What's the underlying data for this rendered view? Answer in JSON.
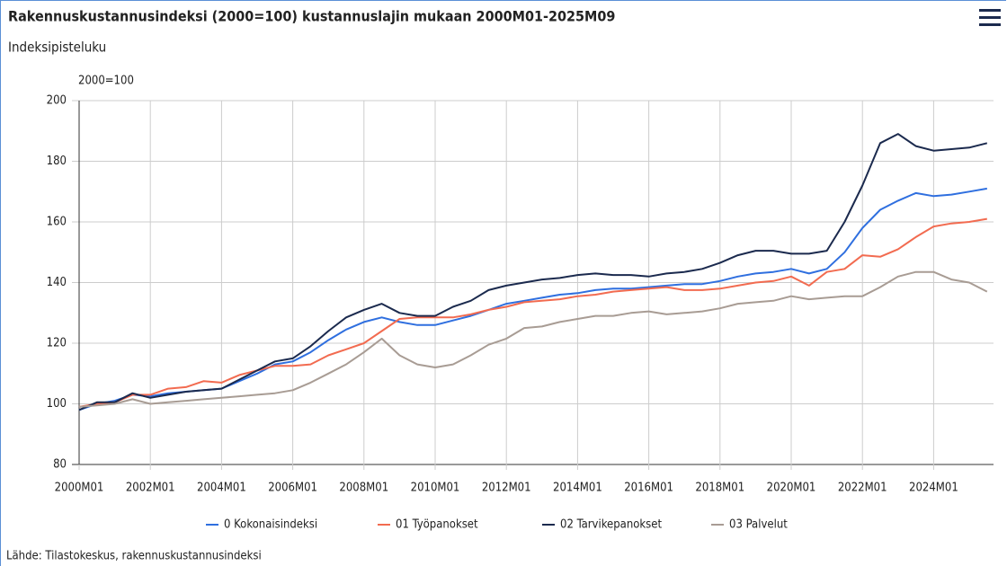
{
  "chart_data": {
    "type": "line",
    "title": "Rakennuskustannusindeksi (2000=100) kustannuslajin mukaan 2000M01-2025M09",
    "subtitle": "Indeksipisteluku",
    "y_unit": "2000=100",
    "source": "Lähde: Tilastokeskus, rakennuskustannusindeksi",
    "categories": [
      "2000M01",
      null,
      null,
      null,
      "2002M01",
      null,
      null,
      null,
      "2004M01",
      null,
      null,
      null,
      "2006M01",
      null,
      null,
      null,
      "2008M01",
      null,
      null,
      null,
      "2010M01",
      null,
      null,
      null,
      "2012M01",
      null,
      null,
      null,
      "2014M01",
      null,
      null,
      null,
      "2016M01",
      null,
      null,
      null,
      "2018M01",
      null,
      null,
      null,
      "2020M01",
      null,
      null,
      null,
      "2022M01",
      null,
      null,
      null,
      "2024M01",
      null,
      null,
      null
    ],
    "series": [
      {
        "name": "0 Kokonaisindeksi",
        "color": "#2f6fdf",
        "values": [
          98,
          100,
          101,
          103,
          102.5,
          103.5,
          104,
          104.5,
          105,
          107.5,
          110,
          113,
          114,
          117,
          121,
          124.5,
          127,
          128.5,
          127,
          126,
          126,
          127.5,
          129,
          131,
          133,
          134,
          135,
          136,
          136.5,
          137.5,
          138,
          138,
          138.5,
          139,
          139.5,
          139.5,
          140.5,
          142,
          143,
          143.5,
          144.5,
          143,
          144.5,
          150,
          158,
          164,
          167,
          169.5,
          168.5,
          169,
          170,
          171
        ]
      },
      {
        "name": "01 Työpanokset",
        "color": "#f26b50",
        "values": [
          99,
          100,
          100.5,
          103,
          103,
          105,
          105.5,
          107.5,
          107,
          109.5,
          111,
          112.5,
          112.5,
          113,
          116,
          118,
          120,
          124,
          128,
          128.5,
          128.5,
          128.5,
          129.5,
          131,
          132,
          133.5,
          134,
          134.5,
          135.5,
          136,
          137,
          137.5,
          138,
          138.5,
          137.5,
          137.5,
          138,
          139,
          140,
          140.5,
          142,
          139,
          143.5,
          144.5,
          149,
          148.5,
          151,
          155,
          158.5,
          159.5,
          160,
          161
        ]
      },
      {
        "name": "02 Tarvikepanokset",
        "color": "#1b2a4e",
        "values": [
          98,
          100.5,
          100.5,
          103.5,
          102,
          103,
          104,
          104.5,
          105,
          108,
          111,
          114,
          115,
          119,
          124,
          128.5,
          131,
          133,
          130,
          129,
          129,
          132,
          134,
          137.5,
          139,
          140,
          141,
          141.5,
          142.5,
          143,
          142.5,
          142.5,
          142,
          143,
          143.5,
          144.5,
          146.5,
          149,
          150.5,
          150.5,
          149.5,
          149.5,
          150.5,
          160,
          172,
          186,
          189,
          185,
          183.5,
          184,
          184.5,
          186
        ]
      },
      {
        "name": "03 Palvelut",
        "color": "#a89c94",
        "values": [
          99,
          99.5,
          100,
          101.5,
          100,
          100.5,
          101,
          101.5,
          102,
          102.5,
          103,
          103.5,
          104.5,
          107,
          110,
          113,
          117,
          121.5,
          116,
          113,
          112,
          113,
          116,
          119.5,
          121.5,
          125,
          125.5,
          127,
          128,
          129,
          129,
          130,
          130.5,
          129.5,
          130,
          130.5,
          131.5,
          133,
          133.5,
          134,
          135.5,
          134.5,
          135,
          135.5,
          135.5,
          138.5,
          142,
          143.5,
          143.5,
          141,
          140,
          137
        ]
      }
    ],
    "ylim": [
      80,
      200
    ],
    "yticks": [
      80,
      100,
      120,
      140,
      160,
      180,
      200
    ],
    "grid": true,
    "legend": "bottom"
  }
}
